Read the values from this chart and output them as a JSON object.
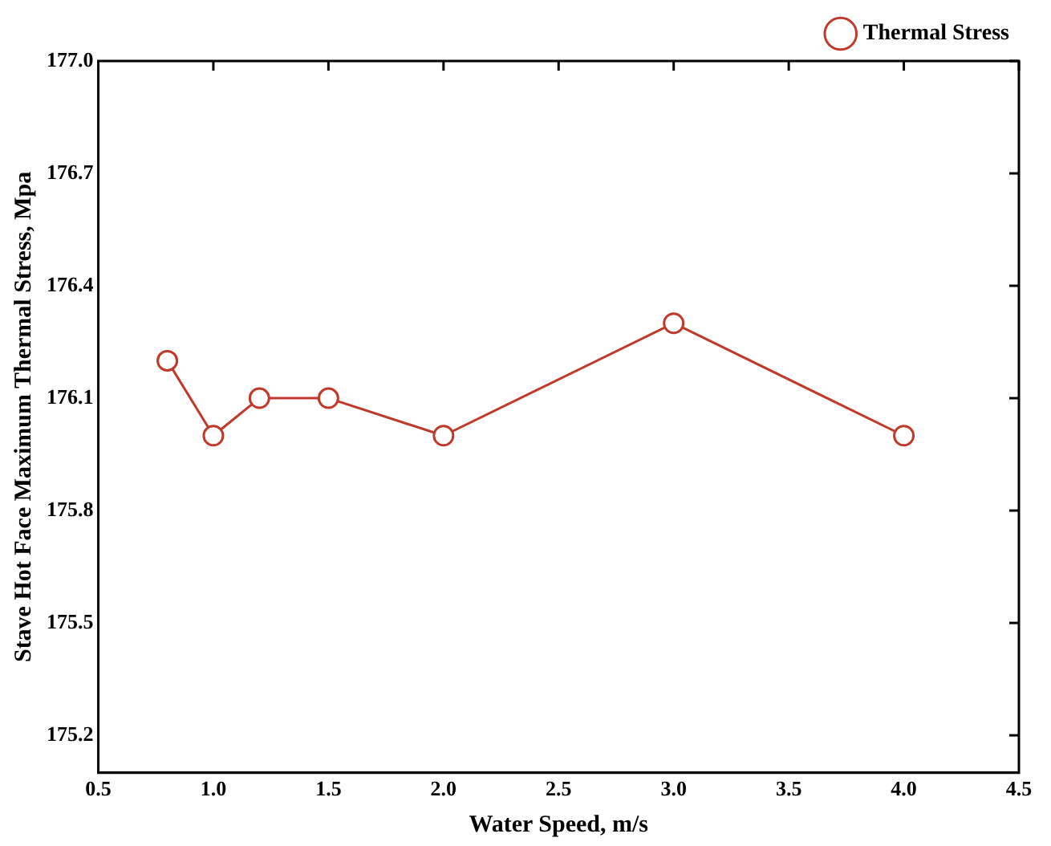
{
  "chart_data": {
    "type": "line",
    "xlabel": "Water Speed, m/s",
    "ylabel": "Stave Hot Face Maximum Thermal Stress, Mpa",
    "x": [
      0.8,
      1.0,
      1.2,
      1.5,
      2.0,
      3.0,
      4.0
    ],
    "series": [
      {
        "name": "Thermal Stress",
        "color": "#c0392b",
        "values": [
          176.2,
          176.0,
          176.1,
          176.1,
          176.0,
          176.3,
          176.0
        ]
      }
    ],
    "xlim": [
      0.5,
      4.5
    ],
    "xticks": [
      {
        "value": 0.5,
        "label": "0.5"
      },
      {
        "value": 1.0,
        "label": "1.0"
      },
      {
        "value": 1.5,
        "label": "1.5"
      },
      {
        "value": 2.0,
        "label": "2.0"
      },
      {
        "value": 2.5,
        "label": "2.5"
      },
      {
        "value": 3.0,
        "label": "3.0"
      },
      {
        "value": 3.5,
        "label": "3.5"
      },
      {
        "value": 4.0,
        "label": "4.0"
      },
      {
        "value": 4.5,
        "label": "4.5"
      }
    ],
    "ylim": [
      175.1,
      177.0
    ],
    "yticks": [
      175.2,
      175.5,
      175.8,
      176.1,
      176.4,
      176.7,
      {
        "value": 177.0,
        "label": "177.0"
      }
    ],
    "grid": false,
    "legend": "top right",
    "marker": "circle",
    "line_style": "solid"
  }
}
